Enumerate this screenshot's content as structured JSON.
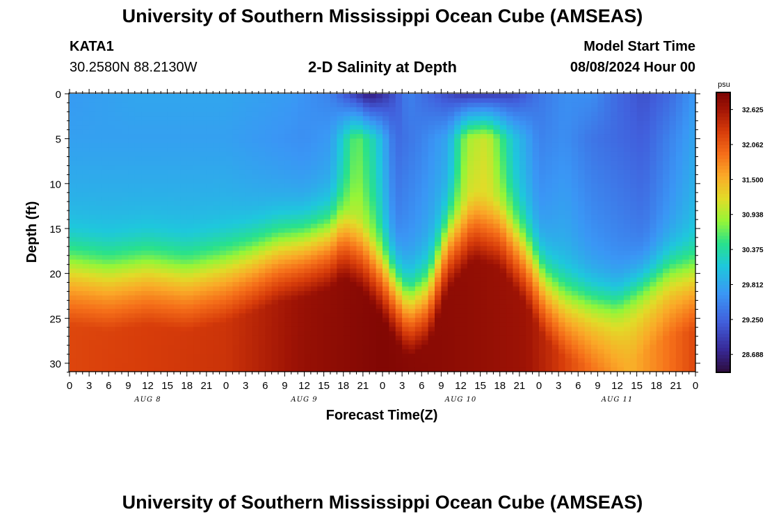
{
  "header": {
    "title": "University of Southern Mississippi Ocean Cube (AMSEAS)",
    "station": "KATA1",
    "coords": "30.2580N  88.2130W",
    "subtitle": "2-D Salinity at Depth",
    "model_start_label": "Model Start Time",
    "model_start_value": "08/08/2024 Hour 00"
  },
  "footer": {
    "title": "University of Southern Mississippi Ocean Cube (AMSEAS)"
  },
  "chart_data": {
    "type": "heatmap",
    "title": "2-D Salinity at Depth",
    "xlabel": "Forecast Time(Z)",
    "ylabel": "Depth (ft)",
    "x_range_hours": [
      0,
      96
    ],
    "y_range_ft": [
      0,
      31
    ],
    "y_ticks": [
      0,
      5,
      10,
      15,
      20,
      25,
      30
    ],
    "x_tick_labels": [
      "0",
      "3",
      "6",
      "9",
      "12",
      "15",
      "18",
      "21",
      "0",
      "3",
      "6",
      "9",
      "12",
      "15",
      "18",
      "21",
      "0",
      "3",
      "6",
      "9",
      "12",
      "15",
      "18",
      "21",
      "0",
      "3",
      "6",
      "9",
      "12",
      "15",
      "18",
      "21",
      "0"
    ],
    "date_labels": [
      {
        "label": "AUG 8",
        "hour": 12
      },
      {
        "label": "AUG 9",
        "hour": 36
      },
      {
        "label": "AUG 10",
        "hour": 60
      },
      {
        "label": "AUG 11",
        "hour": 84
      }
    ],
    "colorbar": {
      "unit": "psu",
      "min": 28.4,
      "max": 32.9,
      "ticks": [
        32.625,
        32.062,
        31.5,
        30.938,
        30.375,
        29.812,
        29.25,
        28.688
      ],
      "tick_labels": [
        "32.625",
        "32.062",
        "31.500",
        "30.938",
        "30.375",
        "29.812",
        "29.250",
        "28.688"
      ]
    },
    "field": {
      "surface_psu_by_hour": [
        [
          0,
          29.7
        ],
        [
          10,
          29.8
        ],
        [
          24,
          29.8
        ],
        [
          34,
          29.7
        ],
        [
          40,
          29.5
        ],
        [
          44,
          28.9
        ],
        [
          46,
          28.6
        ],
        [
          48,
          28.8
        ],
        [
          52,
          29.5
        ],
        [
          56,
          29.2
        ],
        [
          60,
          28.9
        ],
        [
          64,
          28.9
        ],
        [
          68,
          29.0
        ],
        [
          72,
          29.4
        ],
        [
          76,
          29.6
        ],
        [
          80,
          29.6
        ],
        [
          84,
          29.3
        ],
        [
          88,
          29.1
        ],
        [
          92,
          29.3
        ],
        [
          96,
          29.7
        ]
      ],
      "halocline_depth_ft_by_hour": [
        [
          0,
          17.8
        ],
        [
          6,
          18.5
        ],
        [
          12,
          17.8
        ],
        [
          18,
          18.5
        ],
        [
          24,
          17.5
        ],
        [
          28,
          16.5
        ],
        [
          32,
          15.3
        ],
        [
          36,
          14.8
        ],
        [
          40,
          13.8
        ],
        [
          42,
          12.5
        ],
        [
          45,
          14
        ],
        [
          48,
          17
        ],
        [
          50,
          19.5
        ],
        [
          52,
          21.5
        ],
        [
          55,
          20
        ],
        [
          58,
          14
        ],
        [
          62,
          10.5
        ],
        [
          66,
          11.5
        ],
        [
          70,
          15.5
        ],
        [
          73,
          19.5
        ],
        [
          76,
          21.5
        ],
        [
          80,
          22.5
        ],
        [
          84,
          23
        ],
        [
          88,
          21
        ],
        [
          92,
          19
        ],
        [
          96,
          18.5
        ]
      ],
      "deep_max_psu_by_hour": [
        [
          0,
          32.2
        ],
        [
          24,
          32.35
        ],
        [
          36,
          32.7
        ],
        [
          48,
          32.85
        ],
        [
          60,
          32.75
        ],
        [
          70,
          32.65
        ],
        [
          74,
          32.4
        ],
        [
          80,
          31.9
        ],
        [
          86,
          31.5
        ],
        [
          92,
          31.9
        ],
        [
          96,
          32.2
        ]
      ],
      "upper_cells_psu_by_hour": [
        [
          0,
          29.75
        ],
        [
          24,
          29.75
        ],
        [
          36,
          29.6
        ],
        [
          40,
          29.7
        ],
        [
          44,
          30.7
        ],
        [
          47,
          30.2
        ],
        [
          50,
          29.3
        ],
        [
          54,
          29.5
        ],
        [
          58,
          29.8
        ],
        [
          61,
          30.9
        ],
        [
          64,
          31.1
        ],
        [
          68,
          30.1
        ],
        [
          72,
          29.5
        ],
        [
          76,
          29.6
        ],
        [
          80,
          29.4
        ],
        [
          84,
          29.3
        ],
        [
          88,
          29.2
        ],
        [
          92,
          29.5
        ],
        [
          96,
          29.8
        ]
      ]
    }
  }
}
